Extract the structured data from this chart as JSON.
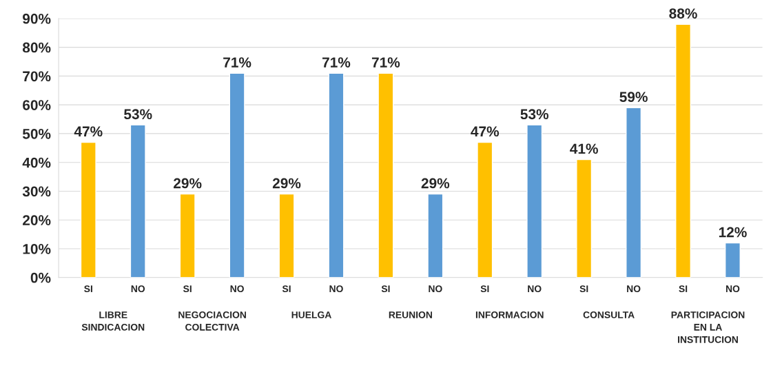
{
  "chart_data": {
    "type": "bar",
    "categories": [
      "SI",
      "NO",
      "SI",
      "NO",
      "SI",
      "NO",
      "SI",
      "NO",
      "SI",
      "NO",
      "SI",
      "NO",
      "SI",
      "NO"
    ],
    "values": [
      47,
      53,
      29,
      71,
      29,
      71,
      71,
      29,
      47,
      53,
      41,
      59,
      88,
      12
    ],
    "colors": [
      "#ffc000",
      "#5b9bd5",
      "#ffc000",
      "#5b9bd5",
      "#ffc000",
      "#5b9bd5",
      "#ffc000",
      "#5b9bd5",
      "#ffc000",
      "#5b9bd5",
      "#ffc000",
      "#5b9bd5",
      "#ffc000",
      "#5b9bd5"
    ],
    "value_labels": [
      "47%",
      "53%",
      "29%",
      "71%",
      "29%",
      "71%",
      "71%",
      "29%",
      "47%",
      "53%",
      "41%",
      "59%",
      "88%",
      "12%"
    ],
    "annotations": [
      "LIBRE\nSINDICACION",
      "NEGOCIACION\nCOLECTIVA",
      "HUELGA",
      "REUNION",
      "INFORMACION",
      "CONSULTA",
      "PARTICIPACION\nEN LA\nINSTITUCION"
    ],
    "ylim": [
      0,
      90
    ],
    "yticks": [
      {
        "value": 0,
        "label": "0%"
      },
      {
        "value": 10,
        "label": "10%"
      },
      {
        "value": 20,
        "label": "20%"
      },
      {
        "value": 30,
        "label": "30%"
      },
      {
        "value": 40,
        "label": "40%"
      },
      {
        "value": 50,
        "label": "50%"
      },
      {
        "value": 60,
        "label": "60%"
      },
      {
        "value": 70,
        "label": "70%"
      },
      {
        "value": 80,
        "label": "80%"
      },
      {
        "value": 90,
        "label": "90%"
      }
    ],
    "grid": "y",
    "legend": false
  }
}
